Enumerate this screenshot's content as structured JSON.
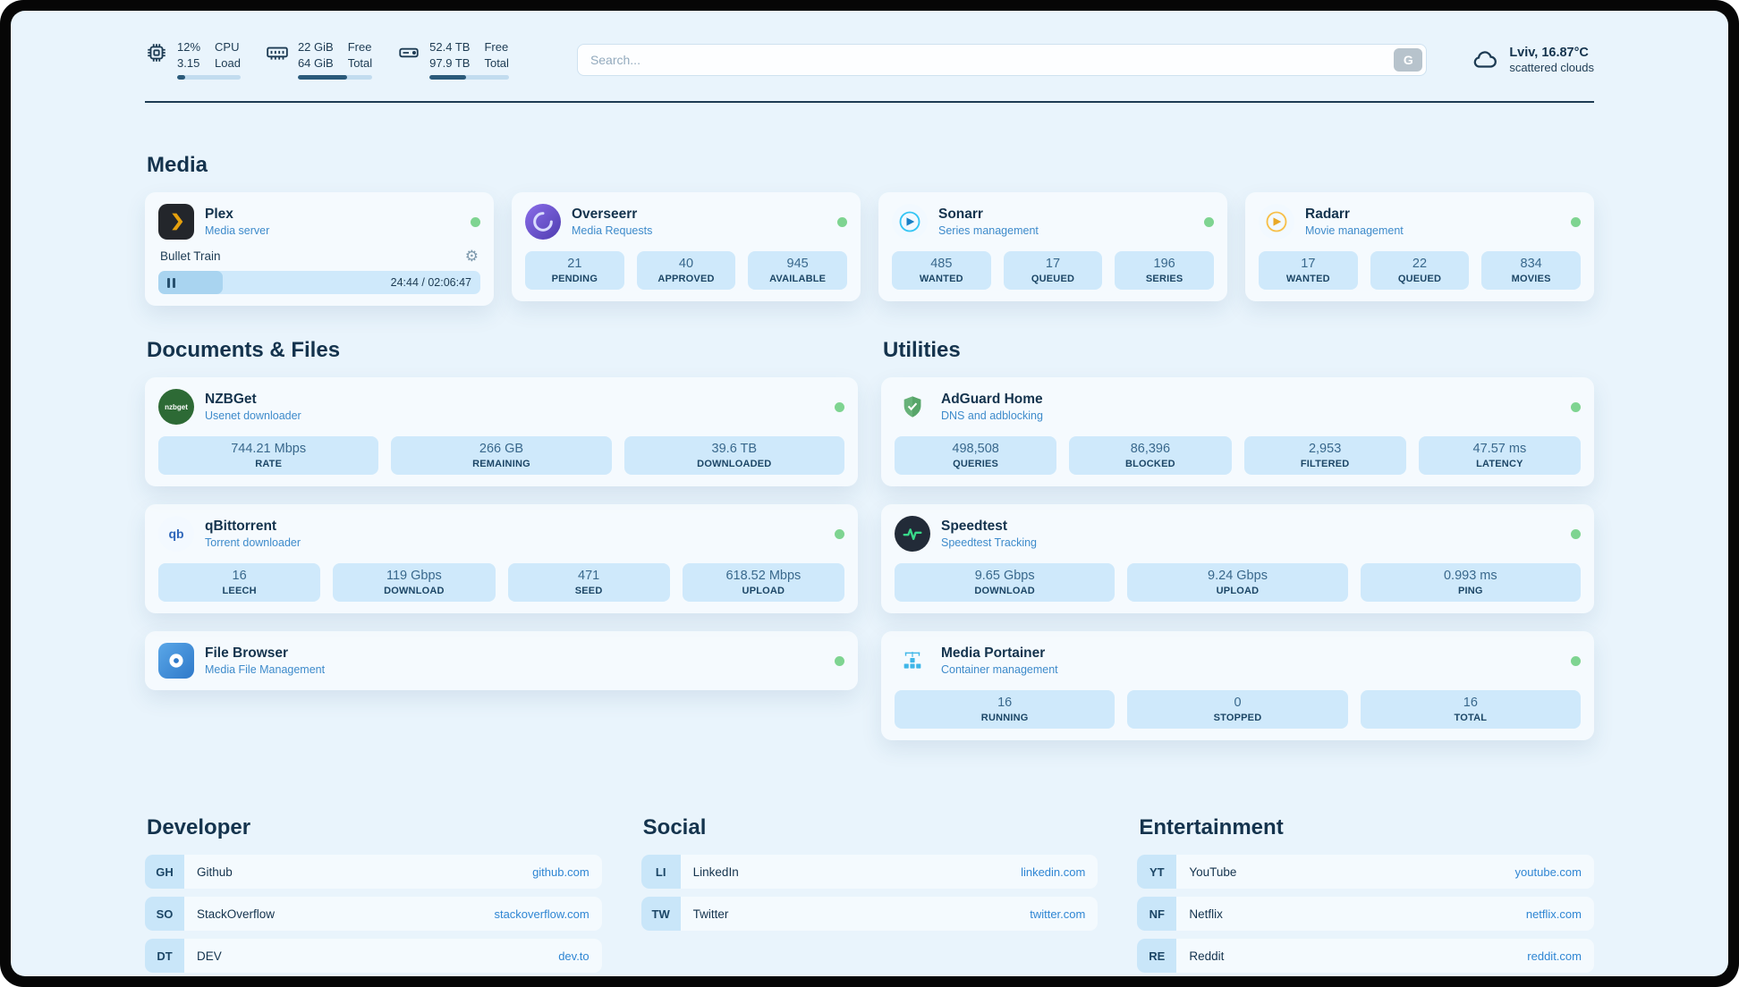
{
  "topbar": {
    "cpu": {
      "value_top": "12%",
      "label_top": "CPU",
      "value_bottom": "3.15",
      "label_bottom": "Load",
      "progress": 12
    },
    "memory": {
      "value_top": "22 GiB",
      "label_top": "Free",
      "value_bottom": "64 GiB",
      "label_bottom": "Total",
      "progress": 66
    },
    "disk": {
      "value_top": "52.4 TB",
      "label_top": "Free",
      "value_bottom": "97.9 TB",
      "label_bottom": "Total",
      "progress": 46
    },
    "search": {
      "placeholder": "Search...",
      "engine_label": "G"
    },
    "weather": {
      "location": "Lviv, 16.87°C",
      "condition": "scattered clouds"
    }
  },
  "media": {
    "title": "Media",
    "plex": {
      "name": "Plex",
      "subtitle": "Media server",
      "now_playing": "Bullet Train",
      "time": "24:44 / 02:06:47",
      "progress": 20
    },
    "overseerr": {
      "name": "Overseerr",
      "subtitle": "Media Requests",
      "stats": [
        {
          "value": "21",
          "label": "PENDING"
        },
        {
          "value": "40",
          "label": "APPROVED"
        },
        {
          "value": "945",
          "label": "AVAILABLE"
        }
      ]
    },
    "sonarr": {
      "name": "Sonarr",
      "subtitle": "Series management",
      "stats": [
        {
          "value": "485",
          "label": "WANTED"
        },
        {
          "value": "17",
          "label": "QUEUED"
        },
        {
          "value": "196",
          "label": "SERIES"
        }
      ]
    },
    "radarr": {
      "name": "Radarr",
      "subtitle": "Movie management",
      "stats": [
        {
          "value": "17",
          "label": "WANTED"
        },
        {
          "value": "22",
          "label": "QUEUED"
        },
        {
          "value": "834",
          "label": "MOVIES"
        }
      ]
    }
  },
  "documents": {
    "title": "Documents & Files",
    "nzbget": {
      "name": "NZBGet",
      "subtitle": "Usenet downloader",
      "icon_text": "nzbget",
      "stats": [
        {
          "value": "744.21 Mbps",
          "label": "RATE"
        },
        {
          "value": "266 GB",
          "label": "REMAINING"
        },
        {
          "value": "39.6 TB",
          "label": "DOWNLOADED"
        }
      ]
    },
    "qbittorrent": {
      "name": "qBittorrent",
      "subtitle": "Torrent downloader",
      "icon_text": "qb",
      "stats": [
        {
          "value": "16",
          "label": "LEECH"
        },
        {
          "value": "119 Gbps",
          "label": "DOWNLOAD"
        },
        {
          "value": "471",
          "label": "SEED"
        },
        {
          "value": "618.52 Mbps",
          "label": "UPLOAD"
        }
      ]
    },
    "filebrowser": {
      "name": "File Browser",
      "subtitle": "Media File Management"
    }
  },
  "utilities": {
    "title": "Utilities",
    "adguard": {
      "name": "AdGuard Home",
      "subtitle": "DNS and adblocking",
      "stats": [
        {
          "value": "498,508",
          "label": "QUERIES"
        },
        {
          "value": "86,396",
          "label": "BLOCKED"
        },
        {
          "value": "2,953",
          "label": "FILTERED"
        },
        {
          "value": "47.57 ms",
          "label": "LATENCY"
        }
      ]
    },
    "speedtest": {
      "name": "Speedtest",
      "subtitle": "Speedtest Tracking",
      "stats": [
        {
          "value": "9.65 Gbps",
          "label": "DOWNLOAD"
        },
        {
          "value": "9.24 Gbps",
          "label": "UPLOAD"
        },
        {
          "value": "0.993 ms",
          "label": "PING"
        }
      ]
    },
    "portainer": {
      "name": "Media Portainer",
      "subtitle": "Container management",
      "stats": [
        {
          "value": "16",
          "label": "RUNNING"
        },
        {
          "value": "0",
          "label": "STOPPED"
        },
        {
          "value": "16",
          "label": "TOTAL"
        }
      ]
    }
  },
  "bookmarks": {
    "developer": {
      "title": "Developer",
      "items": [
        {
          "abbr": "GH",
          "name": "Github",
          "url": "github.com"
        },
        {
          "abbr": "SO",
          "name": "StackOverflow",
          "url": "stackoverflow.com"
        },
        {
          "abbr": "DT",
          "name": "DEV",
          "url": "dev.to"
        }
      ]
    },
    "social": {
      "title": "Social",
      "items": [
        {
          "abbr": "LI",
          "name": "LinkedIn",
          "url": "linkedin.com"
        },
        {
          "abbr": "TW",
          "name": "Twitter",
          "url": "twitter.com"
        }
      ]
    },
    "entertainment": {
      "title": "Entertainment",
      "items": [
        {
          "abbr": "YT",
          "name": "YouTube",
          "url": "youtube.com"
        },
        {
          "abbr": "NF",
          "name": "Netflix",
          "url": "netflix.com"
        },
        {
          "abbr": "RE",
          "name": "Reddit",
          "url": "reddit.com"
        }
      ]
    }
  },
  "colors": {
    "accent": "#2f86d3",
    "status_ok": "#7ed491",
    "page_bg": "#e9f4fc"
  }
}
